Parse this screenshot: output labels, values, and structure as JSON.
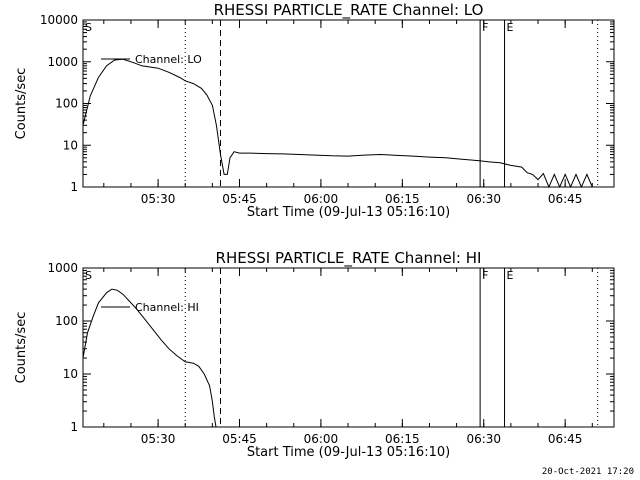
{
  "chart_data": [
    {
      "type": "line",
      "title": "RHESSI PARTICLE_RATE Channel: LO",
      "xlabel": "Start Time (09-Jul-13 05:16:10)",
      "ylabel": "Counts/sec",
      "yscale": "log",
      "xlim": [
        "05:16:10",
        "06:54:00"
      ],
      "ylim": [
        1,
        10000
      ],
      "x_ticks": [
        "05:30",
        "05:45",
        "06:00",
        "06:15",
        "06:30",
        "06:45"
      ],
      "y_ticks": [
        "1",
        "10",
        "100",
        "1000",
        "10000"
      ],
      "legend": "top-left",
      "series": [
        {
          "name": "Channel: LO",
          "x": [
            "05:16:10",
            "05:17:30",
            "05:19:00",
            "05:20:30",
            "05:22:00",
            "05:23:30",
            "05:24:30",
            "05:25:30",
            "05:27:00",
            "05:28:30",
            "05:30:00",
            "05:32:00",
            "05:34:00",
            "05:35:00",
            "05:36:30",
            "05:38:00",
            "05:39:00",
            "05:40:00",
            "05:40:45",
            "05:41:30",
            "05:42:10",
            "05:42:45",
            "05:43:15",
            "05:44:00",
            "05:45:00",
            "05:47:00",
            "05:50:00",
            "05:53:00",
            "05:56:00",
            "05:59:00",
            "06:02:00",
            "06:05:00",
            "06:08:00",
            "06:11:00",
            "06:14:00",
            "06:17:00",
            "06:20:00",
            "06:23:00",
            "06:26:00",
            "06:29:00",
            "06:31:00",
            "06:33:00",
            "06:35:00",
            "06:37:00",
            "06:38:00",
            "06:39:00",
            "06:40:00",
            "06:41:00",
            "06:42:00",
            "06:43:00",
            "06:44:00",
            "06:45:00",
            "06:46:00",
            "06:47:00",
            "06:48:00",
            "06:49:00",
            "06:50:00"
          ],
          "y": [
            30,
            150,
            420,
            800,
            1100,
            1150,
            1050,
            950,
            800,
            750,
            700,
            560,
            420,
            350,
            300,
            230,
            160,
            90,
            30,
            6,
            2,
            2,
            5,
            7,
            6.5,
            6.5,
            6.3,
            6.2,
            6,
            5.8,
            5.6,
            5.5,
            5.8,
            6,
            5.7,
            5.5,
            5.2,
            5,
            4.6,
            4.3,
            4,
            3.8,
            3.3,
            3,
            2.2,
            2,
            1.5,
            2.1,
            1,
            2,
            1,
            2,
            1,
            2,
            1,
            2,
            1
          ],
          "color": "#000000"
        }
      ],
      "vlines": [
        {
          "x": "05:35:00",
          "style": "dotted"
        },
        {
          "x": "05:41:30",
          "style": "dashed"
        },
        {
          "x": "06:29:20",
          "style": "solid"
        },
        {
          "x": "06:33:50",
          "style": "solid"
        },
        {
          "x": "06:51:00",
          "style": "dotted"
        }
      ],
      "markers": [
        {
          "label": "S",
          "x": "05:16:10"
        },
        {
          "label": "F",
          "x": "06:29:20"
        },
        {
          "label": "E",
          "x": "06:33:50"
        }
      ]
    },
    {
      "type": "line",
      "title": "RHESSI PARTICLE_RATE Channel: HI",
      "xlabel": "Start Time (09-Jul-13 05:16:10)",
      "ylabel": "Counts/sec",
      "yscale": "log",
      "xlim": [
        "05:16:10",
        "06:54:00"
      ],
      "ylim": [
        1,
        1000
      ],
      "x_ticks": [
        "05:30",
        "05:45",
        "06:00",
        "06:15",
        "06:30",
        "06:45"
      ],
      "y_ticks": [
        "1",
        "10",
        "100",
        "1000"
      ],
      "legend": "top-left",
      "series": [
        {
          "name": "Channel: HI",
          "x": [
            "05:16:10",
            "05:17:00",
            "05:18:00",
            "05:19:00",
            "05:20:30",
            "05:21:30",
            "05:22:30",
            "05:23:30",
            "05:24:30",
            "05:26:00",
            "05:27:30",
            "05:29:00",
            "05:30:30",
            "05:32:00",
            "05:33:30",
            "05:35:00",
            "05:36:30",
            "05:37:30",
            "05:38:30",
            "05:39:30",
            "05:40:00",
            "05:40:20",
            "05:40:40"
          ],
          "y": [
            20,
            60,
            120,
            220,
            340,
            400,
            380,
            320,
            250,
            170,
            110,
            70,
            45,
            30,
            22,
            17,
            16,
            14,
            10,
            6,
            3,
            1.6,
            1
          ],
          "color": "#000000"
        }
      ],
      "vlines": [
        {
          "x": "05:35:00",
          "style": "dotted"
        },
        {
          "x": "05:41:30",
          "style": "dashed"
        },
        {
          "x": "06:29:20",
          "style": "solid"
        },
        {
          "x": "06:33:50",
          "style": "solid"
        },
        {
          "x": "06:51:00",
          "style": "dotted"
        }
      ],
      "markers": [
        {
          "label": "S",
          "x": "05:16:10"
        },
        {
          "label": "F",
          "x": "06:29:20"
        },
        {
          "label": "E",
          "x": "06:33:50"
        }
      ]
    }
  ],
  "footer": "20-Oct-2021 17:20"
}
